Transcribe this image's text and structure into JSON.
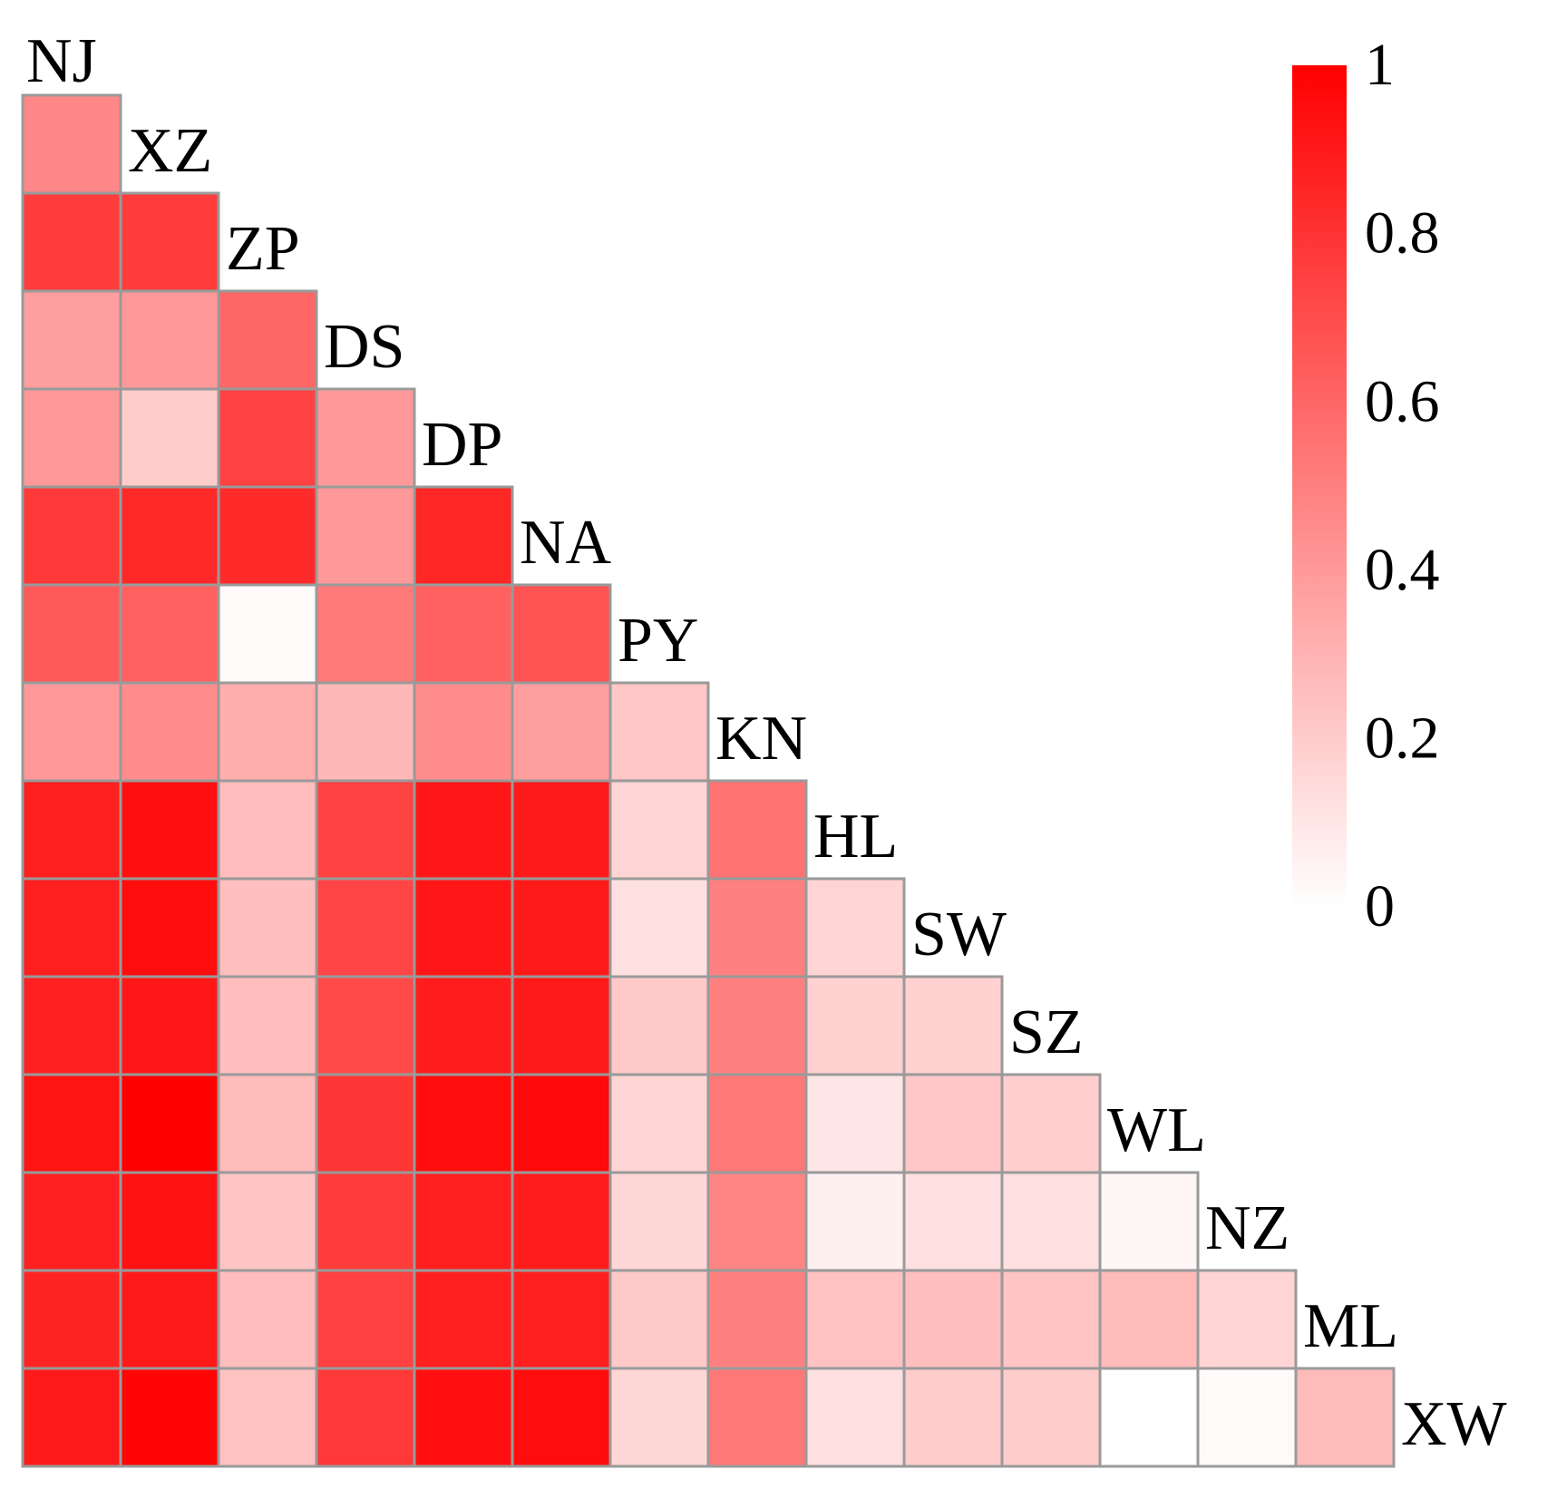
{
  "chart_data": {
    "type": "heatmap",
    "subtype": "lower-triangular correlation matrix",
    "title": "",
    "xlabel": "",
    "ylabel": "",
    "labels": [
      "NJ",
      "XZ",
      "ZP",
      "DS",
      "DP",
      "NA",
      "PY",
      "KN",
      "HL",
      "SW",
      "SZ",
      "WL",
      "NZ",
      "ML",
      "XW"
    ],
    "rows": [
      {
        "label": "XZ",
        "values": [
          0.47
        ]
      },
      {
        "label": "ZP",
        "values": [
          0.76,
          0.76
        ]
      },
      {
        "label": "DS",
        "values": [
          0.38,
          0.4,
          0.6
        ]
      },
      {
        "label": "DP",
        "values": [
          0.4,
          0.2,
          0.74,
          0.4
        ]
      },
      {
        "label": "NA",
        "values": [
          0.78,
          0.84,
          0.83,
          0.4,
          0.85
        ]
      },
      {
        "label": "PY",
        "values": [
          0.65,
          0.62,
          0.02,
          0.52,
          0.62,
          0.68
        ]
      },
      {
        "label": "KN",
        "values": [
          0.4,
          0.45,
          0.32,
          0.28,
          0.45,
          0.38,
          0.22
        ]
      },
      {
        "label": "HL",
        "values": [
          0.88,
          0.94,
          0.26,
          0.74,
          0.91,
          0.9,
          0.17,
          0.55
        ]
      },
      {
        "label": "SW",
        "values": [
          0.88,
          0.95,
          0.25,
          0.73,
          0.91,
          0.9,
          0.12,
          0.5,
          0.17
        ]
      },
      {
        "label": "SZ",
        "values": [
          0.87,
          0.91,
          0.26,
          0.71,
          0.89,
          0.9,
          0.21,
          0.5,
          0.18,
          0.18
        ]
      },
      {
        "label": "WL",
        "values": [
          0.92,
          1.0,
          0.27,
          0.79,
          0.95,
          0.96,
          0.17,
          0.53,
          0.1,
          0.22,
          0.19
        ]
      },
      {
        "label": "NZ",
        "values": [
          0.87,
          0.93,
          0.23,
          0.76,
          0.88,
          0.89,
          0.16,
          0.48,
          0.06,
          0.12,
          0.12,
          0.03
        ]
      },
      {
        "label": "ML",
        "values": [
          0.86,
          0.9,
          0.26,
          0.75,
          0.88,
          0.88,
          0.21,
          0.5,
          0.24,
          0.25,
          0.23,
          0.27,
          0.17
        ]
      },
      {
        "label": "XW",
        "values": [
          0.9,
          0.98,
          0.24,
          0.78,
          0.94,
          0.95,
          0.16,
          0.53,
          0.12,
          0.2,
          0.2,
          0.0,
          0.02,
          0.27
        ]
      }
    ],
    "colorbar": {
      "min": 0,
      "max": 1,
      "ticks": [
        "0",
        "0.2",
        "0.4",
        "0.6",
        "0.8",
        "1"
      ],
      "low_color": "#ffffff",
      "high_color": "#ff0000"
    },
    "cell_border_color": "#9a9a9a",
    "grid": false,
    "legend": "right"
  }
}
